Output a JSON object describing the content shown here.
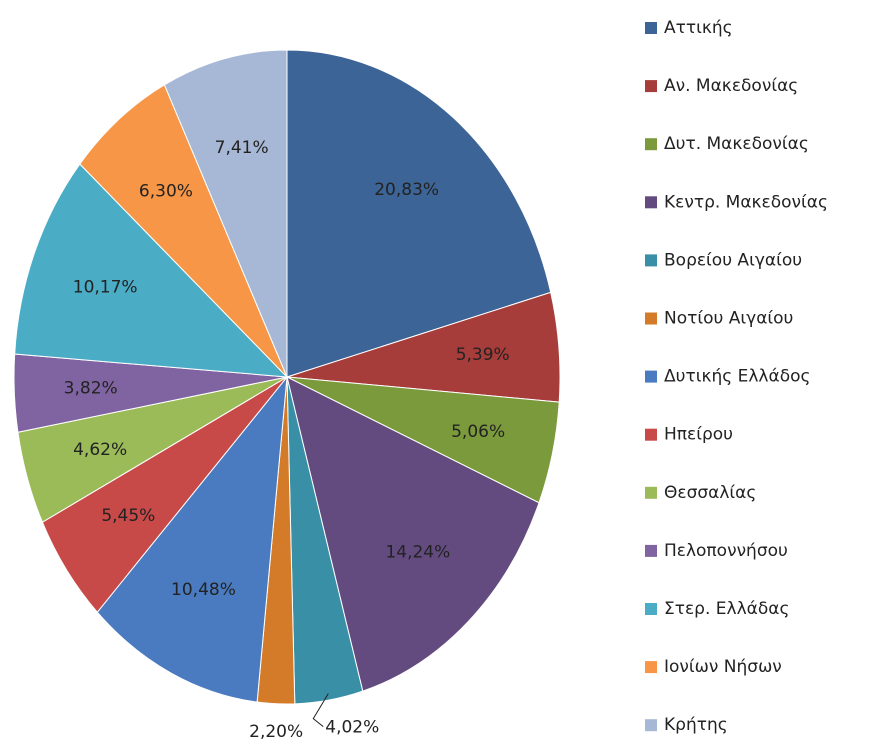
{
  "chart_data": {
    "type": "pie",
    "categories": [
      "Αττικής",
      "Αν. Μακεδονίας",
      "Δυτ. Μακεδονίας",
      "Κεντρ. Μακεδονίας",
      "Βορείου Αιγαίου",
      "Νοτίου Αιγαίου",
      "Δυτικής Ελλάδος",
      "Ηπείρου",
      "Θεσσαλίας",
      "Πελοποννήσου",
      "Στερ. Ελλάδας",
      "Ιονίων Νήσων",
      "Κρήτης"
    ],
    "values": [
      20.83,
      5.39,
      5.06,
      14.24,
      4.02,
      2.2,
      10.48,
      5.45,
      4.62,
      3.82,
      10.17,
      6.3,
      7.41
    ],
    "value_labels": [
      "20,83%",
      "5,39%",
      "5,06%",
      "14,24%",
      "4,02%",
      "2,20%",
      "10,48%",
      "5,45%",
      "4,62%",
      "3,82%",
      "10,17%",
      "6,30%",
      "7,41%"
    ],
    "colors": [
      "#3d6496",
      "#a63d3a",
      "#7b9a3c",
      "#634b80",
      "#3990a6",
      "#d47b2a",
      "#4a7bc0",
      "#c74a48",
      "#9bbb59",
      "#8064a2",
      "#4bacc6",
      "#f79646",
      "#a7b8d6"
    ],
    "legend": "right"
  }
}
